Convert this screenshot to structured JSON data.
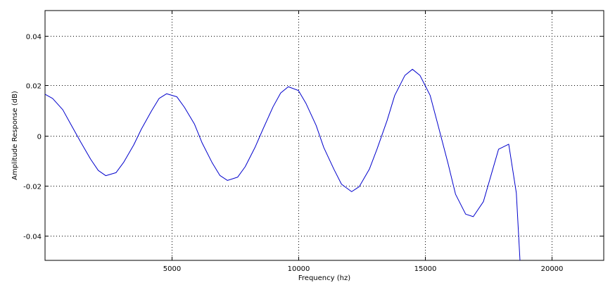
{
  "chart_data": {
    "type": "line",
    "title": "",
    "xlabel": "Frequency (hz)",
    "ylabel": "Amplitude Response (dB)",
    "xlim": [
      0,
      22050
    ],
    "ylim": [
      -0.05,
      0.05
    ],
    "grid": true,
    "grid_style": "dotted",
    "x_ticks": [
      5000,
      10000,
      15000,
      20000
    ],
    "x_tick_labels": [
      "5000",
      "10000",
      "15000",
      "20000"
    ],
    "y_ticks": [
      0.04,
      0.02,
      0,
      -0.02,
      -0.04
    ],
    "y_tick_labels": [
      "0.04",
      "0.02",
      "0",
      "-0.02",
      "-0.04"
    ],
    "series": [
      {
        "color": "#0000cc",
        "x": [
          0,
          300,
          700,
          1000,
          1400,
          1800,
          2100,
          2400,
          2800,
          3100,
          3500,
          3800,
          4200,
          4500,
          4800,
          5200,
          5500,
          5900,
          6200,
          6600,
          6900,
          7200,
          7600,
          7900,
          8300,
          8600,
          9000,
          9300,
          9600,
          10000,
          10300,
          10700,
          11000,
          11400,
          11700,
          12100,
          12400,
          12800,
          13100,
          13500,
          13800,
          14200,
          14500,
          14800,
          15200,
          15500,
          15900,
          16200,
          16600,
          16900,
          17300,
          17600,
          17900,
          18300,
          18600,
          18750
        ],
        "y": [
          0.0165,
          0.0148,
          0.0103,
          0.0048,
          -0.0025,
          -0.0095,
          -0.014,
          -0.0161,
          -0.0149,
          -0.0108,
          -0.0038,
          0.0025,
          0.0098,
          0.0148,
          0.0167,
          0.0155,
          0.0113,
          0.0045,
          -0.003,
          -0.011,
          -0.016,
          -0.018,
          -0.0167,
          -0.0125,
          -0.0045,
          0.0025,
          0.0115,
          0.017,
          0.0195,
          0.018,
          0.0128,
          0.004,
          -0.0048,
          -0.0135,
          -0.0195,
          -0.0225,
          -0.0205,
          -0.0135,
          -0.0055,
          0.006,
          0.016,
          0.024,
          0.0265,
          0.024,
          0.016,
          0.0045,
          -0.011,
          -0.0235,
          -0.0315,
          -0.0325,
          -0.0265,
          -0.016,
          -0.0055,
          -0.0035,
          -0.023,
          -0.051
        ]
      }
    ]
  }
}
